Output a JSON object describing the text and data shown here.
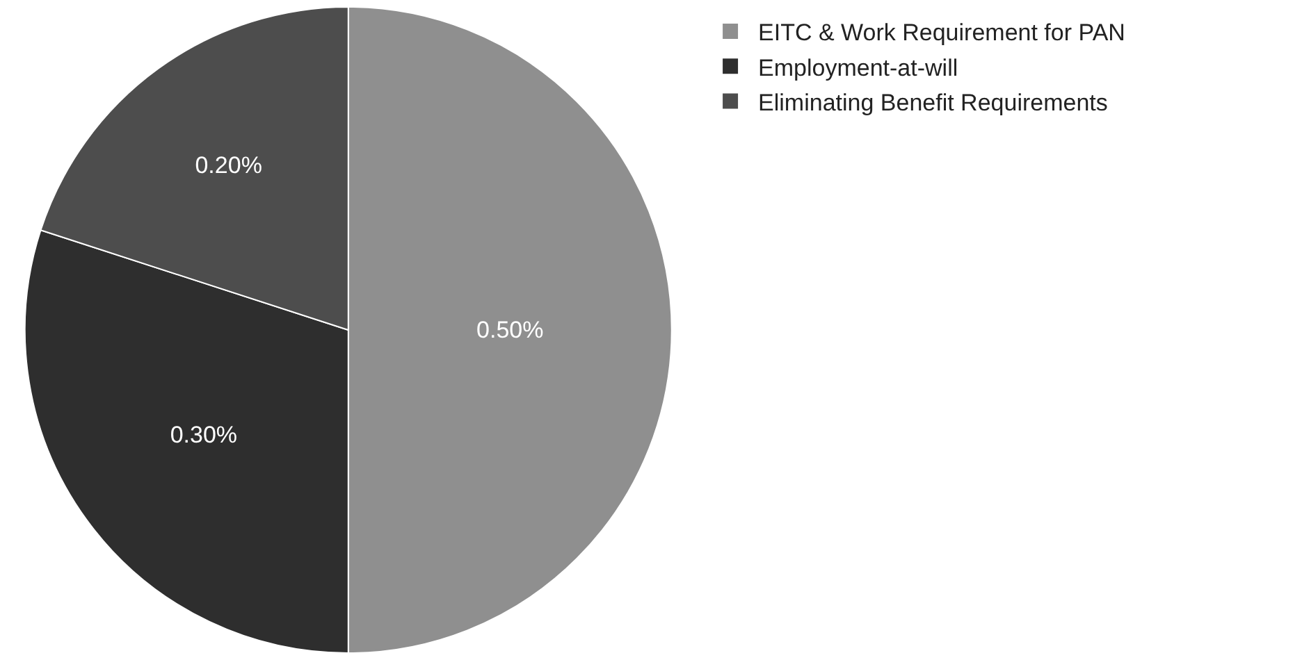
{
  "chart_data": {
    "type": "pie",
    "categories": [
      "EITC & Work Requirement for PAN",
      "Employment-at-will",
      "Eliminating Benefit Requirements"
    ],
    "values": [
      0.5,
      0.3,
      0.2
    ],
    "value_labels": [
      "0.50%",
      "0.30%",
      "0.20%"
    ],
    "colors": [
      "#8f8f8f",
      "#2e2e2e",
      "#4d4d4d"
    ],
    "legend": "top right"
  }
}
